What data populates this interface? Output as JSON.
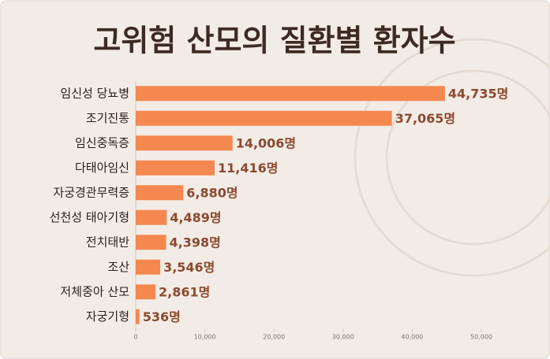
{
  "chart_data": {
    "type": "barh",
    "title": "고위험 산모의 질환별 환자수",
    "categories": [
      "임신성 당뇨병",
      "조기진통",
      "임신중독증",
      "다태아임신",
      "자궁경관무력증",
      "선천성 태아기형",
      "전치태반",
      "조산",
      "저체중아 산모",
      "자궁기형"
    ],
    "values": [
      44735,
      37065,
      14006,
      11416,
      6880,
      4489,
      4398,
      3546,
      2861,
      536
    ],
    "value_labels": [
      "44,735명",
      "37,065명",
      "14,006명",
      "11,416명",
      "6,880명",
      "4,489명",
      "4,398명",
      "3,546명",
      "2,861명",
      "536명"
    ],
    "color": "#f4884f",
    "xlim": [
      0,
      50000
    ],
    "xticks": [
      0,
      {
        "value": 10000,
        "label": "10,000"
      },
      {
        "value": 20000,
        "label": "20,000"
      },
      {
        "value": 30000,
        "label": "30,000"
      },
      {
        "value": 40000,
        "label": "40,000"
      },
      {
        "value": 50000,
        "label": "50,000"
      }
    ]
  }
}
